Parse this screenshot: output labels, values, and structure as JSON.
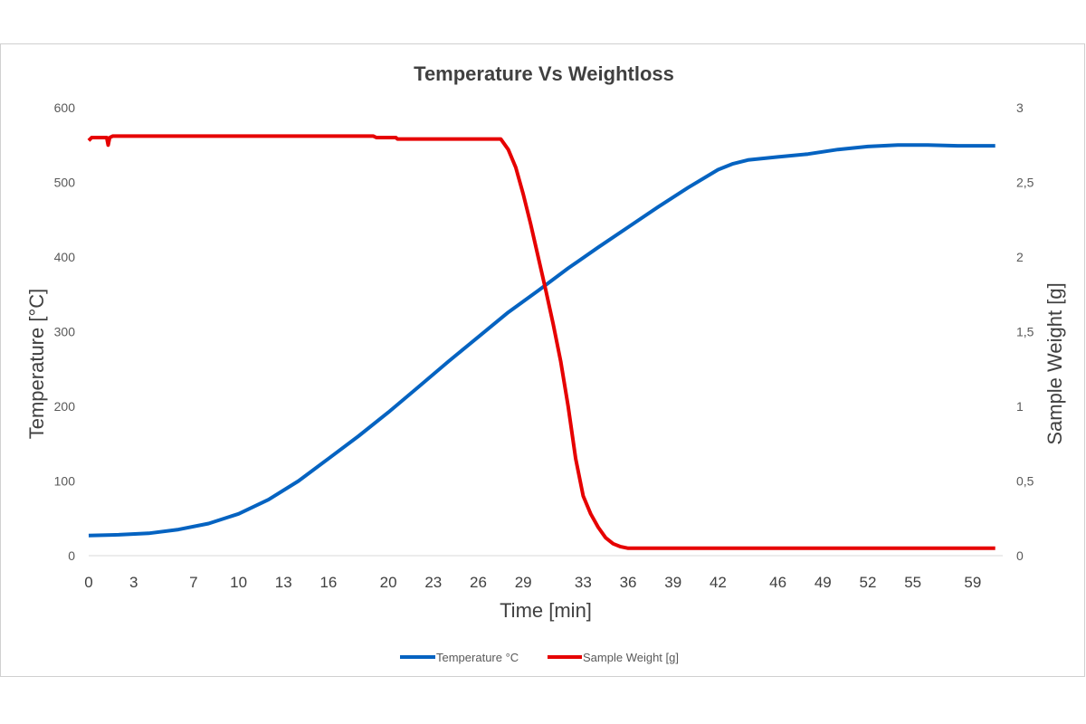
{
  "chart_data": {
    "type": "line",
    "title": "Temperature Vs Weightloss",
    "xlabel": "Time [min]",
    "ylabel_left": "Temperature [°C]",
    "ylabel_right": "Sample Weight [g]",
    "xlim": [
      0,
      61
    ],
    "ylim_left": [
      0,
      600
    ],
    "ylim_right": [
      0,
      3
    ],
    "x_ticks": [
      0,
      3,
      7,
      10,
      13,
      16,
      20,
      23,
      26,
      29,
      33,
      36,
      39,
      42,
      46,
      49,
      52,
      55,
      59
    ],
    "x_tick_labels": [
      "0",
      "3",
      "7",
      "10",
      "13",
      "16",
      "20",
      "23",
      "26",
      "29",
      "33",
      "36",
      "39",
      "42",
      "46",
      "49",
      "52",
      "55",
      "59"
    ],
    "y_left_ticks": [
      0,
      100,
      200,
      300,
      400,
      500,
      600
    ],
    "y_left_tick_labels": [
      "0",
      "100",
      "200",
      "300",
      "400",
      "500",
      "600"
    ],
    "y_right_ticks": [
      0,
      0.5,
      1,
      1.5,
      2,
      2.5,
      3
    ],
    "y_right_tick_labels": [
      "0",
      "0,5",
      "1",
      "1,5",
      "2",
      "2,5",
      "3"
    ],
    "grid": false,
    "legend_position": "bottom",
    "series": [
      {
        "name": "Temperature °C",
        "axis": "left",
        "color": "#0563C1",
        "x": [
          0,
          2,
          4,
          6,
          8,
          10,
          12,
          14,
          16,
          18,
          20,
          22,
          24,
          26,
          28,
          30,
          32,
          34,
          36,
          38,
          40,
          42,
          43,
          44,
          46,
          48,
          50,
          52,
          54,
          56,
          58,
          60.5
        ],
        "y": [
          27,
          28,
          30,
          35,
          43,
          56,
          75,
          100,
          130,
          160,
          192,
          226,
          260,
          293,
          326,
          355,
          385,
          413,
          440,
          467,
          493,
          517,
          525,
          530,
          534,
          538,
          544,
          548,
          550,
          550,
          549,
          549
        ]
      },
      {
        "name": "Sample Weight [g]",
        "axis": "right",
        "color": "#E60000",
        "x": [
          0,
          0.2,
          1.2,
          1.3,
          1.4,
          1.6,
          19,
          19.2,
          20.5,
          20.6,
          27.5,
          28,
          28.5,
          29,
          29.5,
          30,
          30.5,
          31,
          31.5,
          32,
          32.5,
          33,
          33.5,
          34,
          34.5,
          35,
          35.5,
          36,
          60.5
        ],
        "y": [
          2.78,
          2.8,
          2.8,
          2.75,
          2.8,
          2.81,
          2.81,
          2.8,
          2.8,
          2.79,
          2.79,
          2.72,
          2.6,
          2.42,
          2.22,
          2.0,
          1.78,
          1.55,
          1.3,
          1.0,
          0.65,
          0.4,
          0.28,
          0.19,
          0.12,
          0.08,
          0.06,
          0.05,
          0.05
        ]
      }
    ]
  }
}
